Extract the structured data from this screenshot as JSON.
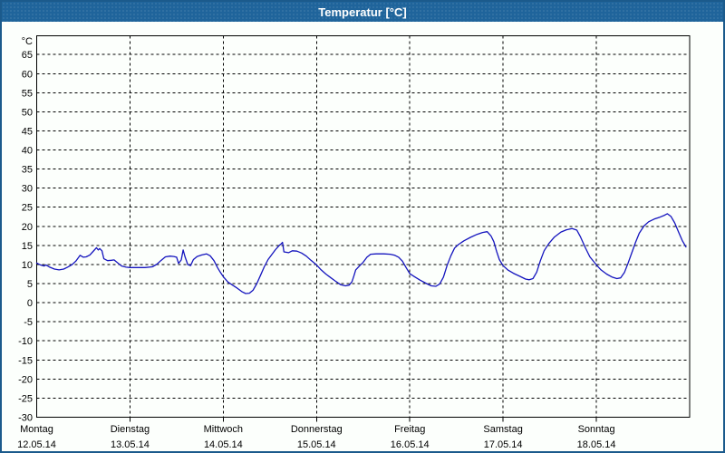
{
  "window": {
    "title": "Temperatur [°C]"
  },
  "colors": {
    "titlebar_bg": "#1F649B",
    "frame_border": "#1B5A8C",
    "background": "#FCFFFC",
    "curve": "#1414BE",
    "grid": "#000000",
    "text": "#000000"
  },
  "chart_data": {
    "type": "line",
    "title": "Temperatur [°C]",
    "ylabel": "°C",
    "ylim": [
      -30,
      65
    ],
    "ytick_step": 5,
    "grid": "dashed",
    "legend_position": "none",
    "x_axis_days": [
      {
        "name": "Montag",
        "date": "12.05.14"
      },
      {
        "name": "Dienstag",
        "date": "13.05.14"
      },
      {
        "name": "Mittwoch",
        "date": "14.05.14"
      },
      {
        "name": "Donnerstag",
        "date": "15.05.14"
      },
      {
        "name": "Freitag",
        "date": "16.05.14"
      },
      {
        "name": "Samstag",
        "date": "17.05.14"
      },
      {
        "name": "Sonntag",
        "date": "18.05.14"
      }
    ],
    "series": [
      {
        "name": "Temperatur",
        "color": "#1414BE",
        "x_unit": "days_since_monday_00h",
        "points": [
          [
            0.0,
            10.4
          ],
          [
            0.04,
            9.9
          ],
          [
            0.08,
            9.6
          ],
          [
            0.1,
            9.9
          ],
          [
            0.14,
            9.3
          ],
          [
            0.19,
            8.8
          ],
          [
            0.24,
            8.6
          ],
          [
            0.29,
            8.8
          ],
          [
            0.33,
            9.3
          ],
          [
            0.38,
            10.0
          ],
          [
            0.42,
            10.9
          ],
          [
            0.465,
            12.4
          ],
          [
            0.5,
            11.9
          ],
          [
            0.53,
            12.0
          ],
          [
            0.57,
            12.5
          ],
          [
            0.6,
            13.3
          ],
          [
            0.64,
            14.4
          ],
          [
            0.66,
            13.8
          ],
          [
            0.675,
            14.2
          ],
          [
            0.7,
            13.6
          ],
          [
            0.72,
            11.5
          ],
          [
            0.76,
            11.0
          ],
          [
            0.8,
            11.1
          ],
          [
            0.83,
            11.2
          ],
          [
            0.87,
            10.4
          ],
          [
            0.91,
            9.6
          ],
          [
            0.96,
            9.3
          ],
          [
            1.0,
            9.2
          ],
          [
            1.08,
            9.2
          ],
          [
            1.16,
            9.2
          ],
          [
            1.24,
            9.4
          ],
          [
            1.29,
            10.1
          ],
          [
            1.33,
            11.0
          ],
          [
            1.38,
            12.0
          ],
          [
            1.43,
            12.2
          ],
          [
            1.47,
            12.1
          ],
          [
            1.5,
            11.9
          ],
          [
            1.52,
            10.3
          ],
          [
            1.55,
            11.2
          ],
          [
            1.57,
            13.8
          ],
          [
            1.59,
            12.0
          ],
          [
            1.62,
            10.0
          ],
          [
            1.65,
            9.7
          ],
          [
            1.68,
            11.3
          ],
          [
            1.72,
            12.1
          ],
          [
            1.77,
            12.5
          ],
          [
            1.82,
            12.8
          ],
          [
            1.86,
            12.3
          ],
          [
            1.9,
            11.0
          ],
          [
            1.94,
            9.1
          ],
          [
            1.97,
            7.9
          ],
          [
            2.0,
            6.8
          ],
          [
            2.05,
            5.4
          ],
          [
            2.1,
            4.6
          ],
          [
            2.15,
            3.8
          ],
          [
            2.2,
            2.9
          ],
          [
            2.24,
            2.4
          ],
          [
            2.28,
            2.5
          ],
          [
            2.32,
            3.3
          ],
          [
            2.36,
            5.0
          ],
          [
            2.4,
            7.2
          ],
          [
            2.44,
            9.4
          ],
          [
            2.48,
            11.3
          ],
          [
            2.52,
            12.6
          ],
          [
            2.56,
            13.9
          ],
          [
            2.6,
            15.0
          ],
          [
            2.62,
            15.4
          ],
          [
            2.635,
            15.8
          ],
          [
            2.65,
            13.3
          ],
          [
            2.7,
            13.1
          ],
          [
            2.74,
            13.6
          ],
          [
            2.79,
            13.5
          ],
          [
            2.84,
            13.0
          ],
          [
            2.89,
            12.2
          ],
          [
            2.94,
            11.1
          ],
          [
            3.0,
            9.9
          ],
          [
            3.05,
            8.6
          ],
          [
            3.1,
            7.5
          ],
          [
            3.15,
            6.6
          ],
          [
            3.2,
            5.7
          ],
          [
            3.26,
            4.7
          ],
          [
            3.31,
            4.4
          ],
          [
            3.35,
            4.6
          ],
          [
            3.38,
            5.5
          ],
          [
            3.4,
            7.0
          ],
          [
            3.42,
            8.6
          ],
          [
            3.46,
            9.6
          ],
          [
            3.5,
            10.6
          ],
          [
            3.54,
            11.9
          ],
          [
            3.58,
            12.7
          ],
          [
            3.64,
            12.8
          ],
          [
            3.72,
            12.8
          ],
          [
            3.79,
            12.7
          ],
          [
            3.84,
            12.4
          ],
          [
            3.88,
            11.9
          ],
          [
            3.92,
            10.9
          ],
          [
            3.96,
            9.2
          ],
          [
            4.0,
            7.6
          ],
          [
            4.05,
            6.8
          ],
          [
            4.11,
            5.9
          ],
          [
            4.18,
            5.0
          ],
          [
            4.23,
            4.4
          ],
          [
            4.28,
            4.3
          ],
          [
            4.32,
            4.9
          ],
          [
            4.36,
            6.7
          ],
          [
            4.4,
            9.8
          ],
          [
            4.44,
            12.3
          ],
          [
            4.48,
            14.3
          ],
          [
            4.52,
            15.2
          ],
          [
            4.58,
            16.2
          ],
          [
            4.65,
            17.1
          ],
          [
            4.72,
            17.9
          ],
          [
            4.78,
            18.4
          ],
          [
            4.83,
            18.6
          ],
          [
            4.87,
            17.5
          ],
          [
            4.9,
            16.0
          ],
          [
            4.93,
            13.5
          ],
          [
            4.96,
            11.3
          ],
          [
            5.0,
            9.7
          ],
          [
            5.05,
            8.6
          ],
          [
            5.11,
            7.7
          ],
          [
            5.18,
            6.9
          ],
          [
            5.24,
            6.2
          ],
          [
            5.28,
            6.0
          ],
          [
            5.32,
            6.3
          ],
          [
            5.36,
            8.0
          ],
          [
            5.4,
            11.0
          ],
          [
            5.44,
            13.6
          ],
          [
            5.49,
            15.5
          ],
          [
            5.55,
            17.2
          ],
          [
            5.62,
            18.5
          ],
          [
            5.68,
            19.1
          ],
          [
            5.74,
            19.4
          ],
          [
            5.79,
            19.0
          ],
          [
            5.83,
            17.2
          ],
          [
            5.88,
            14.5
          ],
          [
            5.93,
            12.0
          ],
          [
            6.0,
            9.9
          ],
          [
            6.05,
            8.6
          ],
          [
            6.11,
            7.5
          ],
          [
            6.17,
            6.7
          ],
          [
            6.22,
            6.3
          ],
          [
            6.26,
            6.5
          ],
          [
            6.3,
            7.9
          ],
          [
            6.34,
            10.4
          ],
          [
            6.38,
            13.1
          ],
          [
            6.42,
            15.8
          ],
          [
            6.46,
            18.2
          ],
          [
            6.51,
            20.1
          ],
          [
            6.56,
            21.2
          ],
          [
            6.62,
            21.9
          ],
          [
            6.68,
            22.4
          ],
          [
            6.73,
            22.9
          ],
          [
            6.76,
            23.3
          ],
          [
            6.8,
            22.6
          ],
          [
            6.84,
            20.9
          ],
          [
            6.88,
            18.6
          ],
          [
            6.92,
            16.3
          ],
          [
            6.96,
            14.6
          ]
        ]
      }
    ]
  }
}
